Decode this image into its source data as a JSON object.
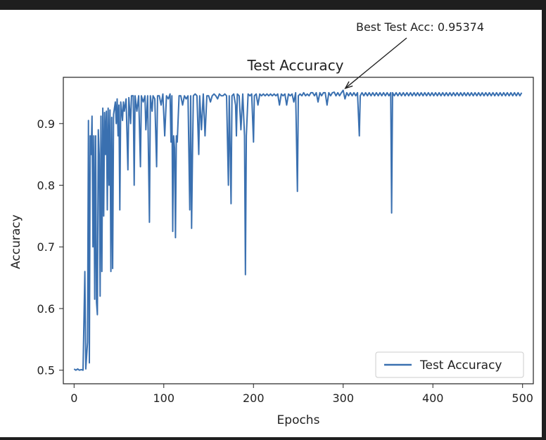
{
  "chart_data": {
    "type": "line",
    "title": "Test Accuracy",
    "xlabel": "Epochs",
    "ylabel": "Accuracy",
    "xlim": [
      -12,
      512
    ],
    "ylim": [
      0.478,
      0.975
    ],
    "xticks": [
      0,
      100,
      200,
      300,
      400,
      500
    ],
    "yticks": [
      0.5,
      0.6,
      0.7,
      0.8,
      0.9
    ],
    "grid": false,
    "legend_position": "lower right",
    "series": [
      {
        "name": "Test Accuracy",
        "color": "#3a70b0",
        "points": [
          [
            0,
            0.502
          ],
          [
            2,
            0.5
          ],
          [
            4,
            0.502
          ],
          [
            6,
            0.5
          ],
          [
            8,
            0.501
          ],
          [
            10,
            0.5
          ],
          [
            12,
            0.66
          ],
          [
            13,
            0.502
          ],
          [
            15,
            0.545
          ],
          [
            16,
            0.905
          ],
          [
            17,
            0.512
          ],
          [
            18,
            0.88
          ],
          [
            19,
            0.85
          ],
          [
            20,
            0.912
          ],
          [
            21,
            0.7
          ],
          [
            22,
            0.88
          ],
          [
            23,
            0.615
          ],
          [
            24,
            0.88
          ],
          [
            25,
            0.61
          ],
          [
            26,
            0.59
          ],
          [
            27,
            0.89
          ],
          [
            28,
            0.85
          ],
          [
            29,
            0.62
          ],
          [
            30,
            0.912
          ],
          [
            31,
            0.66
          ],
          [
            32,
            0.925
          ],
          [
            33,
            0.75
          ],
          [
            34,
            0.918
          ],
          [
            35,
            0.85
          ],
          [
            36,
            0.92
          ],
          [
            37,
            0.76
          ],
          [
            38,
            0.925
          ],
          [
            39,
            0.8
          ],
          [
            40,
            0.922
          ],
          [
            41,
            0.66
          ],
          [
            42,
            0.91
          ],
          [
            43,
            0.665
          ],
          [
            44,
            0.915
          ],
          [
            46,
            0.935
          ],
          [
            47,
            0.9
          ],
          [
            48,
            0.94
          ],
          [
            49,
            0.88
          ],
          [
            50,
            0.93
          ],
          [
            51,
            0.76
          ],
          [
            52,
            0.935
          ],
          [
            54,
            0.905
          ],
          [
            55,
            0.935
          ],
          [
            56,
            0.92
          ],
          [
            58,
            0.94
          ],
          [
            60,
            0.825
          ],
          [
            61,
            0.942
          ],
          [
            63,
            0.9
          ],
          [
            64,
            0.945
          ],
          [
            66,
            0.945
          ],
          [
            67,
            0.8
          ],
          [
            68,
            0.945
          ],
          [
            70,
            0.92
          ],
          [
            72,
            0.945
          ],
          [
            74,
            0.83
          ],
          [
            75,
            0.945
          ],
          [
            77,
            0.935
          ],
          [
            79,
            0.945
          ],
          [
            80,
            0.89
          ],
          [
            82,
            0.945
          ],
          [
            84,
            0.74
          ],
          [
            85,
            0.945
          ],
          [
            87,
            0.92
          ],
          [
            88,
            0.945
          ],
          [
            90,
            0.94
          ],
          [
            92,
            0.83
          ],
          [
            93,
            0.945
          ],
          [
            95,
            0.945
          ],
          [
            97,
            0.93
          ],
          [
            99,
            0.948
          ],
          [
            101,
            0.88
          ],
          [
            103,
            0.945
          ],
          [
            105,
            0.94
          ],
          [
            107,
            0.948
          ],
          [
            108,
            0.87
          ],
          [
            109,
            0.945
          ],
          [
            110,
            0.725
          ],
          [
            111,
            0.88
          ],
          [
            112,
            0.86
          ],
          [
            113,
            0.715
          ],
          [
            114,
            0.88
          ],
          [
            115,
            0.87
          ],
          [
            117,
            0.945
          ],
          [
            119,
            0.945
          ],
          [
            121,
            0.93
          ],
          [
            123,
            0.945
          ],
          [
            125,
            0.94
          ],
          [
            127,
            0.945
          ],
          [
            129,
            0.76
          ],
          [
            130,
            0.945
          ],
          [
            131,
            0.73
          ],
          [
            132,
            0.85
          ],
          [
            133,
            0.945
          ],
          [
            135,
            0.948
          ],
          [
            137,
            0.945
          ],
          [
            139,
            0.85
          ],
          [
            140,
            0.945
          ],
          [
            142,
            0.89
          ],
          [
            144,
            0.948
          ],
          [
            146,
            0.88
          ],
          [
            148,
            0.945
          ],
          [
            150,
            0.945
          ],
          [
            152,
            0.935
          ],
          [
            154,
            0.945
          ],
          [
            156,
            0.948
          ],
          [
            158,
            0.945
          ],
          [
            160,
            0.94
          ],
          [
            162,
            0.948
          ],
          [
            164,
            0.945
          ],
          [
            166,
            0.945
          ],
          [
            168,
            0.948
          ],
          [
            170,
            0.945
          ],
          [
            172,
            0.8
          ],
          [
            173,
            0.945
          ],
          [
            175,
            0.77
          ],
          [
            176,
            0.945
          ],
          [
            178,
            0.948
          ],
          [
            180,
            0.93
          ],
          [
            181,
            0.88
          ],
          [
            182,
            0.948
          ],
          [
            184,
            0.945
          ],
          [
            186,
            0.89
          ],
          [
            188,
            0.948
          ],
          [
            190,
            0.88
          ],
          [
            191,
            0.655
          ],
          [
            192,
            0.88
          ],
          [
            194,
            0.948
          ],
          [
            196,
            0.945
          ],
          [
            198,
            0.948
          ],
          [
            200,
            0.87
          ],
          [
            201,
            0.945
          ],
          [
            203,
            0.948
          ],
          [
            205,
            0.93
          ],
          [
            207,
            0.948
          ],
          [
            209,
            0.945
          ],
          [
            211,
            0.948
          ],
          [
            213,
            0.945
          ],
          [
            215,
            0.948
          ],
          [
            217,
            0.945
          ],
          [
            219,
            0.948
          ],
          [
            221,
            0.945
          ],
          [
            223,
            0.948
          ],
          [
            225,
            0.945
          ],
          [
            227,
            0.948
          ],
          [
            229,
            0.93
          ],
          [
            231,
            0.948
          ],
          [
            233,
            0.945
          ],
          [
            235,
            0.948
          ],
          [
            237,
            0.93
          ],
          [
            239,
            0.948
          ],
          [
            241,
            0.945
          ],
          [
            243,
            0.948
          ],
          [
            245,
            0.935
          ],
          [
            247,
            0.95
          ],
          [
            249,
            0.79
          ],
          [
            250,
            0.945
          ],
          [
            252,
            0.948
          ],
          [
            254,
            0.945
          ],
          [
            256,
            0.95
          ],
          [
            258,
            0.945
          ],
          [
            260,
            0.948
          ],
          [
            262,
            0.945
          ],
          [
            264,
            0.95
          ],
          [
            266,
            0.95
          ],
          [
            268,
            0.945
          ],
          [
            270,
            0.95
          ],
          [
            272,
            0.935
          ],
          [
            274,
            0.95
          ],
          [
            276,
            0.945
          ],
          [
            278,
            0.95
          ],
          [
            280,
            0.95
          ],
          [
            282,
            0.93
          ],
          [
            284,
            0.95
          ],
          [
            286,
            0.945
          ],
          [
            288,
            0.95
          ],
          [
            290,
            0.951
          ],
          [
            292,
            0.945
          ],
          [
            294,
            0.95
          ],
          [
            296,
            0.945
          ],
          [
            298,
            0.95
          ],
          [
            300,
            0.954
          ],
          [
            302,
            0.94
          ],
          [
            304,
            0.95
          ],
          [
            306,
            0.945
          ],
          [
            308,
            0.95
          ],
          [
            310,
            0.945
          ],
          [
            312,
            0.95
          ],
          [
            314,
            0.945
          ],
          [
            316,
            0.95
          ],
          [
            318,
            0.88
          ],
          [
            319,
            0.945
          ],
          [
            321,
            0.95
          ],
          [
            323,
            0.945
          ],
          [
            325,
            0.95
          ],
          [
            327,
            0.945
          ],
          [
            329,
            0.95
          ],
          [
            331,
            0.945
          ],
          [
            333,
            0.95
          ],
          [
            335,
            0.945
          ],
          [
            337,
            0.95
          ],
          [
            339,
            0.945
          ],
          [
            341,
            0.95
          ],
          [
            343,
            0.945
          ],
          [
            345,
            0.95
          ],
          [
            347,
            0.945
          ],
          [
            349,
            0.95
          ],
          [
            351,
            0.945
          ],
          [
            353,
            0.95
          ],
          [
            354,
            0.755
          ],
          [
            355,
            0.95
          ],
          [
            357,
            0.945
          ],
          [
            359,
            0.95
          ],
          [
            361,
            0.945
          ],
          [
            363,
            0.95
          ],
          [
            365,
            0.945
          ],
          [
            367,
            0.95
          ],
          [
            369,
            0.945
          ],
          [
            371,
            0.95
          ],
          [
            373,
            0.945
          ],
          [
            375,
            0.95
          ],
          [
            377,
            0.945
          ],
          [
            379,
            0.95
          ],
          [
            381,
            0.945
          ],
          [
            383,
            0.95
          ],
          [
            385,
            0.945
          ],
          [
            387,
            0.95
          ],
          [
            389,
            0.945
          ],
          [
            391,
            0.95
          ],
          [
            393,
            0.945
          ],
          [
            395,
            0.95
          ],
          [
            397,
            0.945
          ],
          [
            399,
            0.95
          ],
          [
            401,
            0.945
          ],
          [
            403,
            0.95
          ],
          [
            405,
            0.945
          ],
          [
            407,
            0.95
          ],
          [
            409,
            0.945
          ],
          [
            411,
            0.95
          ],
          [
            413,
            0.945
          ],
          [
            415,
            0.95
          ],
          [
            417,
            0.945
          ],
          [
            419,
            0.95
          ],
          [
            421,
            0.945
          ],
          [
            423,
            0.95
          ],
          [
            425,
            0.945
          ],
          [
            427,
            0.95
          ],
          [
            429,
            0.945
          ],
          [
            431,
            0.95
          ],
          [
            433,
            0.945
          ],
          [
            435,
            0.95
          ],
          [
            437,
            0.945
          ],
          [
            439,
            0.95
          ],
          [
            441,
            0.945
          ],
          [
            443,
            0.95
          ],
          [
            445,
            0.945
          ],
          [
            447,
            0.95
          ],
          [
            449,
            0.945
          ],
          [
            451,
            0.95
          ],
          [
            453,
            0.945
          ],
          [
            455,
            0.95
          ],
          [
            457,
            0.945
          ],
          [
            459,
            0.95
          ],
          [
            461,
            0.945
          ],
          [
            463,
            0.95
          ],
          [
            465,
            0.945
          ],
          [
            467,
            0.95
          ],
          [
            469,
            0.945
          ],
          [
            471,
            0.95
          ],
          [
            473,
            0.945
          ],
          [
            475,
            0.95
          ],
          [
            477,
            0.945
          ],
          [
            479,
            0.95
          ],
          [
            481,
            0.945
          ],
          [
            483,
            0.95
          ],
          [
            485,
            0.945
          ],
          [
            487,
            0.95
          ],
          [
            489,
            0.945
          ],
          [
            491,
            0.95
          ],
          [
            493,
            0.945
          ],
          [
            495,
            0.95
          ],
          [
            497,
            0.945
          ],
          [
            499,
            0.95
          ]
        ]
      }
    ],
    "annotation": {
      "text": "Best Test Acc: 0.95374",
      "x": 300,
      "y": 0.95374
    }
  }
}
